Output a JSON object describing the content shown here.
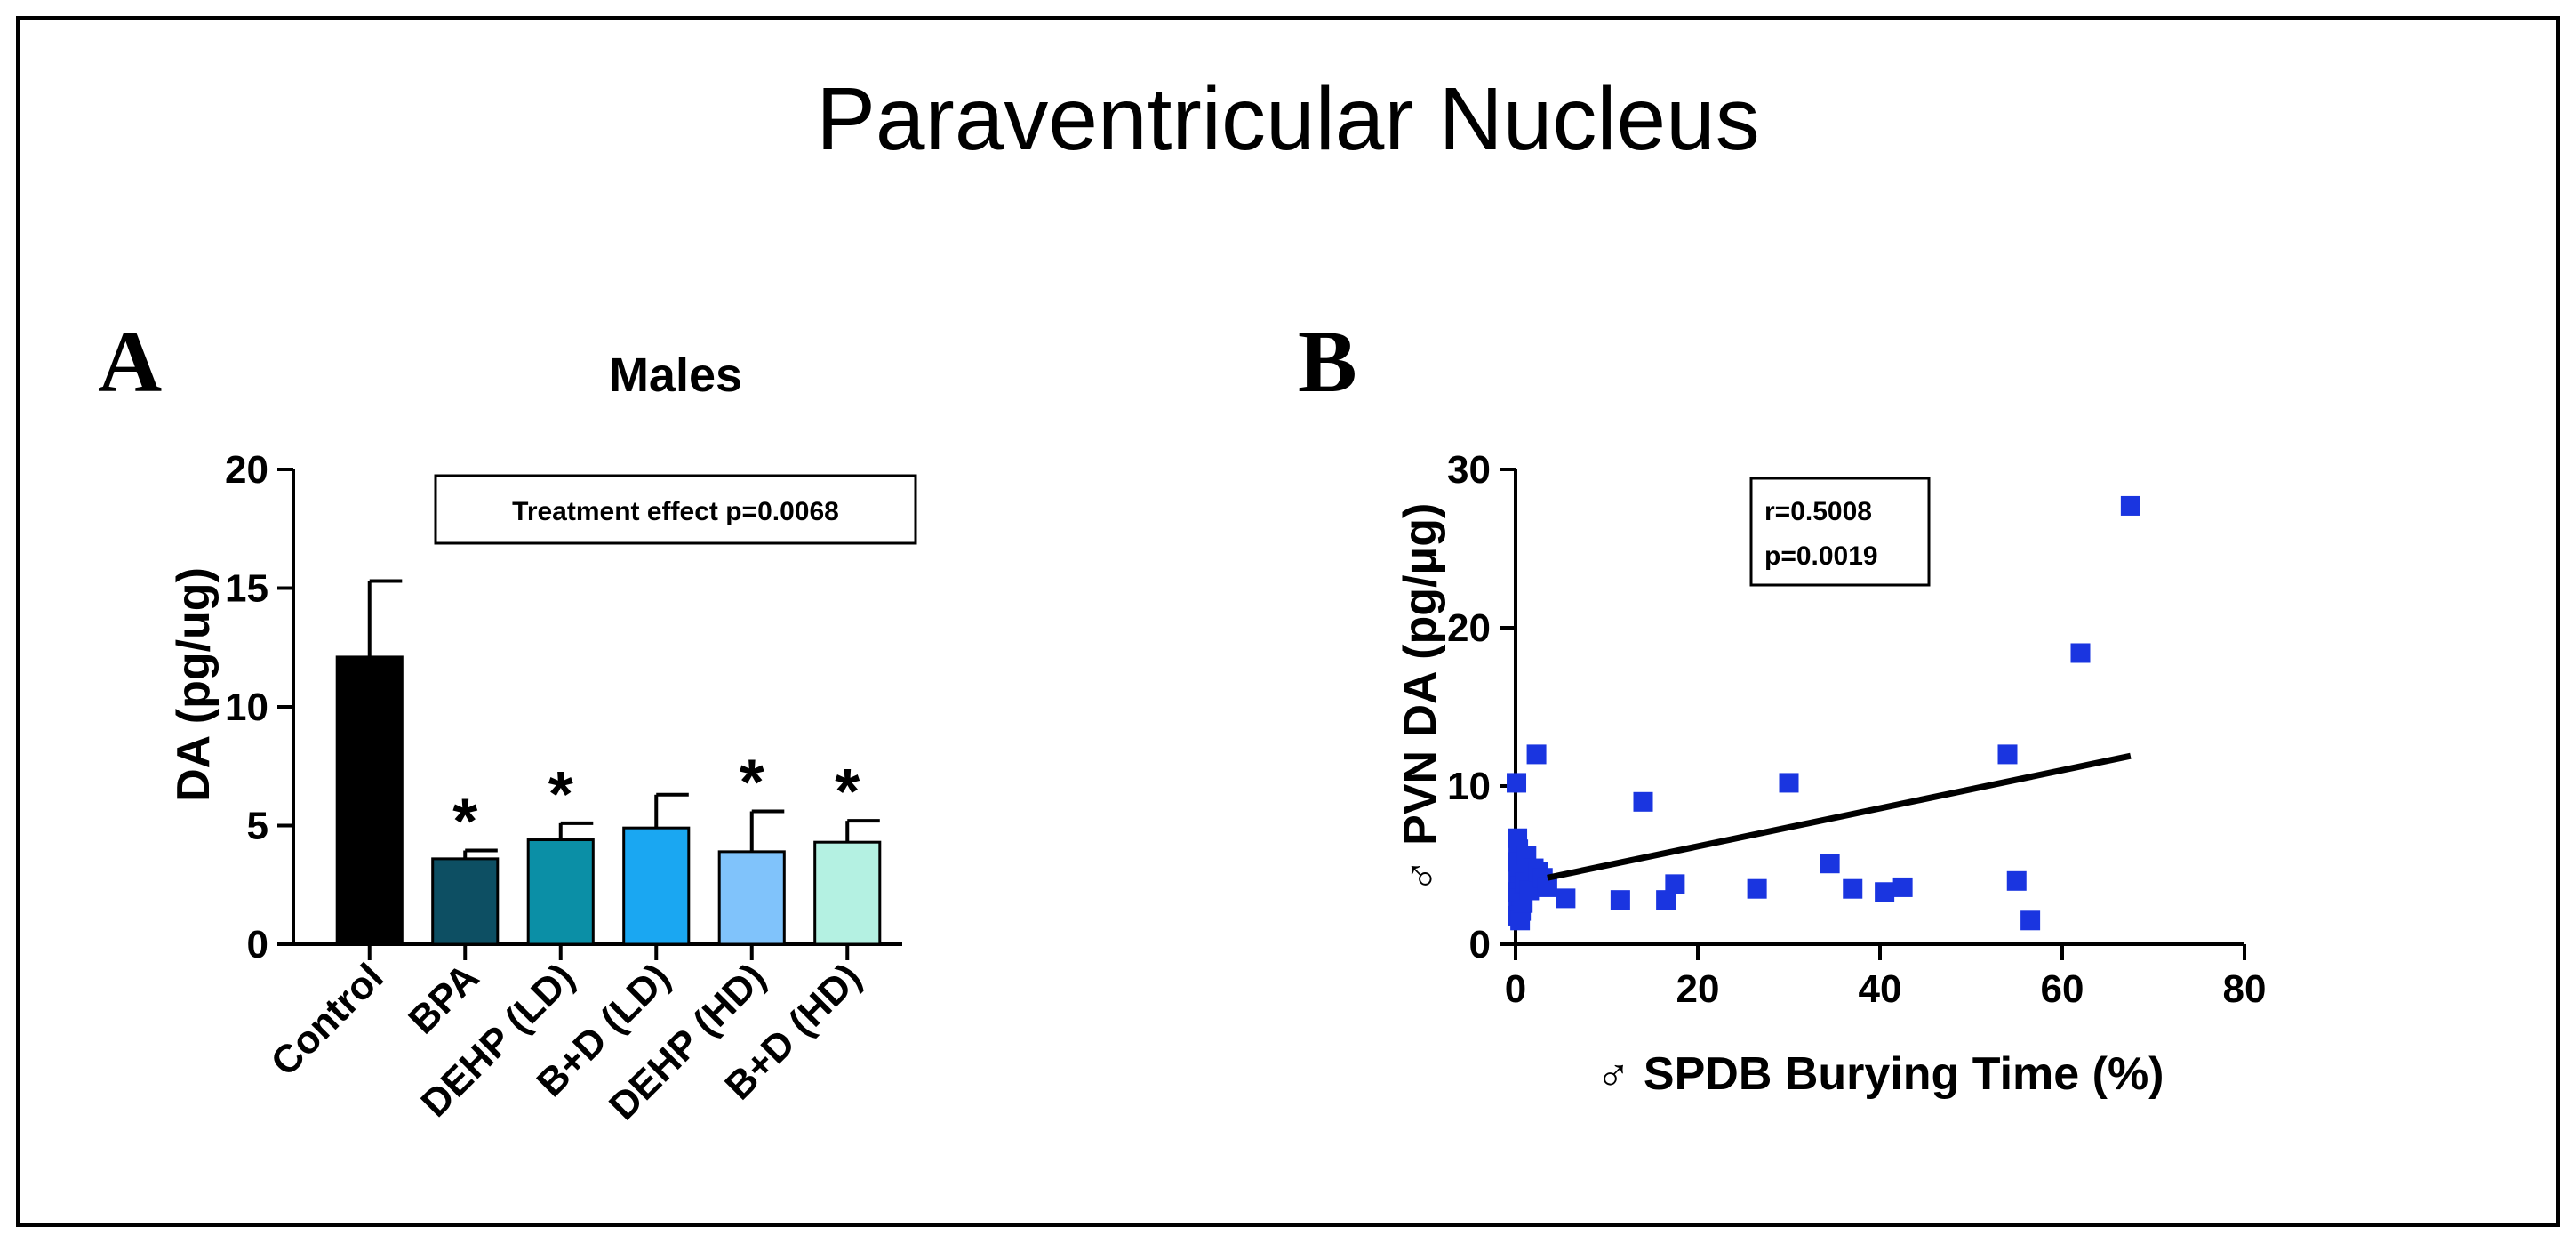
{
  "figure": {
    "title": "Paraventricular Nucleus"
  },
  "colors": {
    "scatter_points": "#1a35e0",
    "regression_line": "#000000"
  },
  "chart_data": [
    {
      "panel": "A",
      "type": "bar",
      "title": "Males",
      "xlabel": "",
      "ylabel": "DA (pg/ug)",
      "ylim": [
        0,
        20
      ],
      "yticks": [
        "0",
        "5",
        "10",
        "15",
        "20"
      ],
      "categories": [
        "Control",
        "BPA",
        "DEHP (LD)",
        "B+D (LD)",
        "DEHP (HD)",
        "B+D (HD)"
      ],
      "values": [
        12.1,
        3.6,
        4.4,
        4.9,
        3.9,
        4.3
      ],
      "errors": [
        3.2,
        0.35,
        0.7,
        1.4,
        1.7,
        0.9
      ],
      "significant": [
        false,
        true,
        true,
        false,
        true,
        true
      ],
      "significance_marker": "*",
      "colors": [
        "#000000",
        "#0d4f63",
        "#0b8fa6",
        "#1aa7f2",
        "#80c3fb",
        "#b4f1e2"
      ],
      "annotation": "Treatment effect p=0.0068"
    },
    {
      "panel": "B",
      "type": "scatter",
      "xlabel": "♂ SPDB Burying Time (%)",
      "ylabel": "♂ PVN DA (pg/μg)",
      "xlim": [
        0,
        80
      ],
      "ylim": [
        0,
        30
      ],
      "xticks": [
        "0",
        "20",
        "40",
        "60",
        "80"
      ],
      "yticks": [
        "0",
        "10",
        "20",
        "30"
      ],
      "annotation": [
        "r=0.5008",
        "p=0.0019"
      ],
      "points": [
        [
          0.1,
          10.2
        ],
        [
          0.2,
          6.7
        ],
        [
          0.3,
          6.0
        ],
        [
          0.2,
          5.2
        ],
        [
          0.4,
          4.6
        ],
        [
          0.3,
          4.1
        ],
        [
          0.5,
          3.7
        ],
        [
          0.2,
          3.3
        ],
        [
          0.4,
          2.9
        ],
        [
          0.3,
          2.5
        ],
        [
          0.6,
          2.1
        ],
        [
          0.2,
          1.8
        ],
        [
          0.5,
          1.5
        ],
        [
          0.8,
          2.6
        ],
        [
          1.0,
          3.9
        ],
        [
          1.2,
          5.6
        ],
        [
          1.5,
          3.4
        ],
        [
          2.0,
          4.8
        ],
        [
          2.3,
          12.0
        ],
        [
          2.5,
          4.6
        ],
        [
          3.0,
          4.2
        ],
        [
          3.5,
          3.6
        ],
        [
          5.5,
          2.9
        ],
        [
          11.5,
          2.8
        ],
        [
          14.0,
          9.0
        ],
        [
          16.5,
          2.8
        ],
        [
          17.5,
          3.8
        ],
        [
          26.5,
          3.5
        ],
        [
          30.0,
          10.2
        ],
        [
          34.5,
          5.1
        ],
        [
          37.0,
          3.5
        ],
        [
          40.5,
          3.3
        ],
        [
          42.5,
          3.6
        ],
        [
          54.0,
          12.0
        ],
        [
          55.0,
          4.0
        ],
        [
          56.5,
          1.5
        ],
        [
          62.0,
          18.4
        ],
        [
          67.5,
          27.7
        ]
      ],
      "fit_line": {
        "x": [
          3.5,
          67.5
        ],
        "y": [
          4.2,
          11.9
        ]
      }
    }
  ]
}
